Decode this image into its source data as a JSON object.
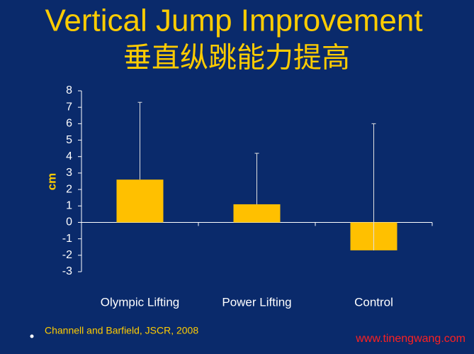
{
  "chart_data": {
    "type": "bar",
    "title": "Vertical Jump Improvement",
    "subtitle": "垂直纵跳能力提高",
    "y_label": "cm",
    "categories": [
      "Olympic Lifting",
      "Power Lifting",
      "Control"
    ],
    "values": [
      2.6,
      1.1,
      -1.7
    ],
    "errors": [
      4.7,
      3.1,
      7.7
    ],
    "color": "#ffc000",
    "ylim": [
      -3,
      8
    ],
    "yticks": [
      -3,
      -2,
      -1,
      0,
      1,
      2,
      3,
      4,
      5,
      6,
      7,
      8
    ],
    "source": "Channell and Barfield, JSCR, 2008",
    "watermark": "www.tinengwang.com"
  }
}
